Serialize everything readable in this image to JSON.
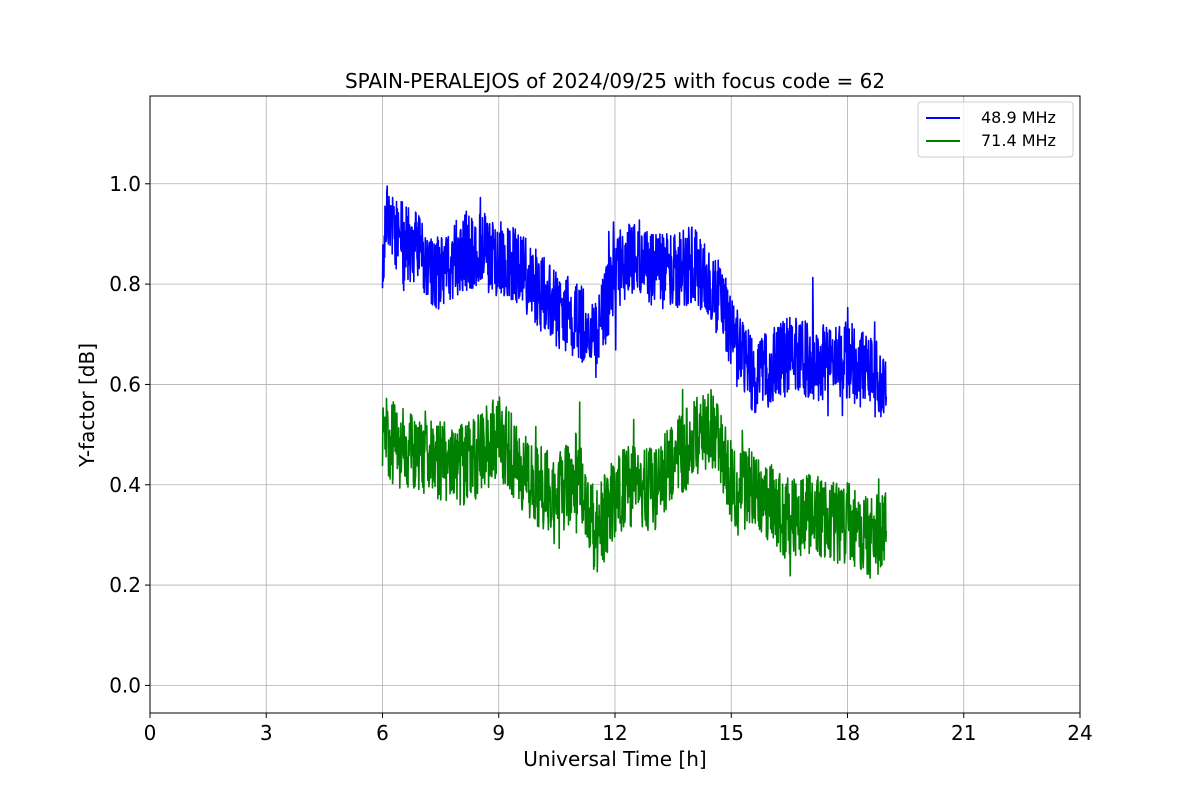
{
  "chart_data": {
    "type": "line",
    "title": "SPAIN-PERALEJOS of 2024/09/25 with focus code = 62",
    "xlabel": "Universal Time [h]",
    "ylabel": "Y-factor [dB]",
    "xlim": [
      0,
      24
    ],
    "ylim": [
      -0.055,
      1.175
    ],
    "xticks": [
      0,
      3,
      6,
      9,
      12,
      15,
      18,
      21,
      24
    ],
    "xtick_labels": [
      "0",
      "3",
      "6",
      "9",
      "12",
      "15",
      "18",
      "21",
      "24"
    ],
    "yticks": [
      0.0,
      0.2,
      0.4,
      0.6,
      0.8,
      1.0
    ],
    "ytick_labels": [
      "0.0",
      "0.2",
      "0.4",
      "0.6",
      "0.8",
      "1.0"
    ],
    "grid": true,
    "legend_position": "top-right",
    "series": [
      {
        "name": "48.9 MHz",
        "color": "#0000ff",
        "noise": 0.06,
        "x": [
          6.0,
          6.1,
          6.3,
          6.6,
          7.0,
          7.3,
          7.6,
          8.0,
          8.5,
          9.0,
          9.5,
          10.0,
          10.5,
          11.0,
          11.5,
          12.0,
          12.5,
          13.0,
          13.5,
          14.0,
          14.5,
          14.9,
          15.2,
          15.6,
          16.0,
          16.5,
          17.0,
          17.5,
          18.0,
          18.5,
          19.0
        ],
        "y": [
          0.86,
          0.93,
          0.9,
          0.88,
          0.87,
          0.83,
          0.82,
          0.86,
          0.87,
          0.85,
          0.83,
          0.79,
          0.75,
          0.73,
          0.69,
          0.82,
          0.86,
          0.83,
          0.82,
          0.84,
          0.8,
          0.73,
          0.66,
          0.62,
          0.63,
          0.66,
          0.65,
          0.64,
          0.65,
          0.62,
          0.6
        ]
      },
      {
        "name": "71.4 MHz",
        "color": "#008000",
        "noise": 0.065,
        "x": [
          6.0,
          6.2,
          6.5,
          7.0,
          7.5,
          8.0,
          8.5,
          9.0,
          9.5,
          10.0,
          10.5,
          11.0,
          11.5,
          12.0,
          12.5,
          13.0,
          13.5,
          14.0,
          14.5,
          14.9,
          15.2,
          15.6,
          16.0,
          16.5,
          17.0,
          17.5,
          18.0,
          18.5,
          19.0
        ],
        "y": [
          0.5,
          0.49,
          0.47,
          0.47,
          0.45,
          0.44,
          0.46,
          0.5,
          0.44,
          0.4,
          0.38,
          0.42,
          0.3,
          0.38,
          0.4,
          0.39,
          0.44,
          0.49,
          0.52,
          0.42,
          0.38,
          0.4,
          0.36,
          0.33,
          0.34,
          0.33,
          0.32,
          0.3,
          0.31
        ]
      }
    ]
  }
}
